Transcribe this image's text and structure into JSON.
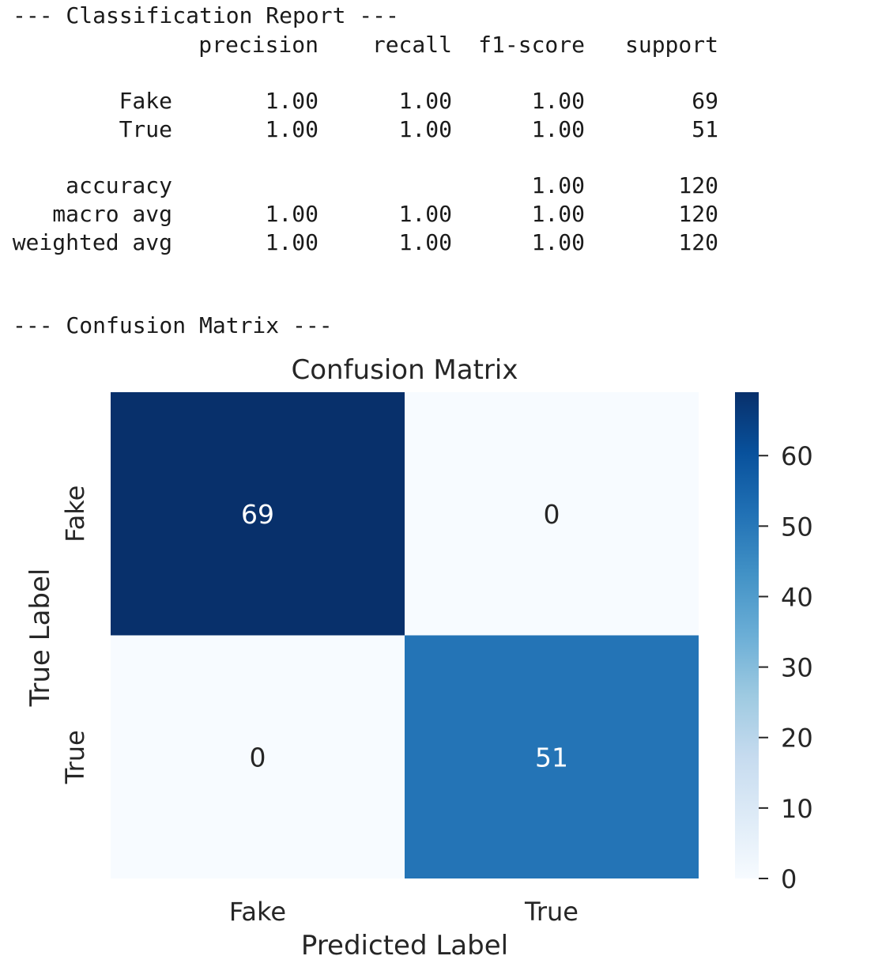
{
  "report": {
    "heading": "--- Classification Report ---",
    "columns": [
      "precision",
      "recall",
      "f1-score",
      "support"
    ],
    "class_rows": [
      {
        "label": "Fake",
        "precision": "1.00",
        "recall": "1.00",
        "f1": "1.00",
        "support": "69"
      },
      {
        "label": "True",
        "precision": "1.00",
        "recall": "1.00",
        "f1": "1.00",
        "support": "51"
      }
    ],
    "summary_rows": [
      {
        "label": "accuracy",
        "precision": "",
        "recall": "",
        "f1": "1.00",
        "support": "120"
      },
      {
        "label": "macro avg",
        "precision": "1.00",
        "recall": "1.00",
        "f1": "1.00",
        "support": "120"
      },
      {
        "label": "weighted avg",
        "precision": "1.00",
        "recall": "1.00",
        "f1": "1.00",
        "support": "120"
      }
    ]
  },
  "confusion_heading": "--- Confusion Matrix ---",
  "chart_data": {
    "type": "heatmap",
    "title": "Confusion Matrix",
    "xlabel": "Predicted Label",
    "ylabel": "True Label",
    "x_categories": [
      "Fake",
      "True"
    ],
    "y_categories": [
      "Fake",
      "True"
    ],
    "values": [
      [
        69,
        0
      ],
      [
        0,
        51
      ]
    ],
    "colormap": "Blues",
    "colorbar": {
      "ticks": [
        0,
        10,
        20,
        30,
        40,
        50,
        60
      ],
      "range": [
        0,
        69
      ]
    },
    "colors": {
      "min": "#f7fbff",
      "max": "#08306b",
      "annotation_dark": "#262626",
      "annotation_light": "#ffffff"
    }
  }
}
